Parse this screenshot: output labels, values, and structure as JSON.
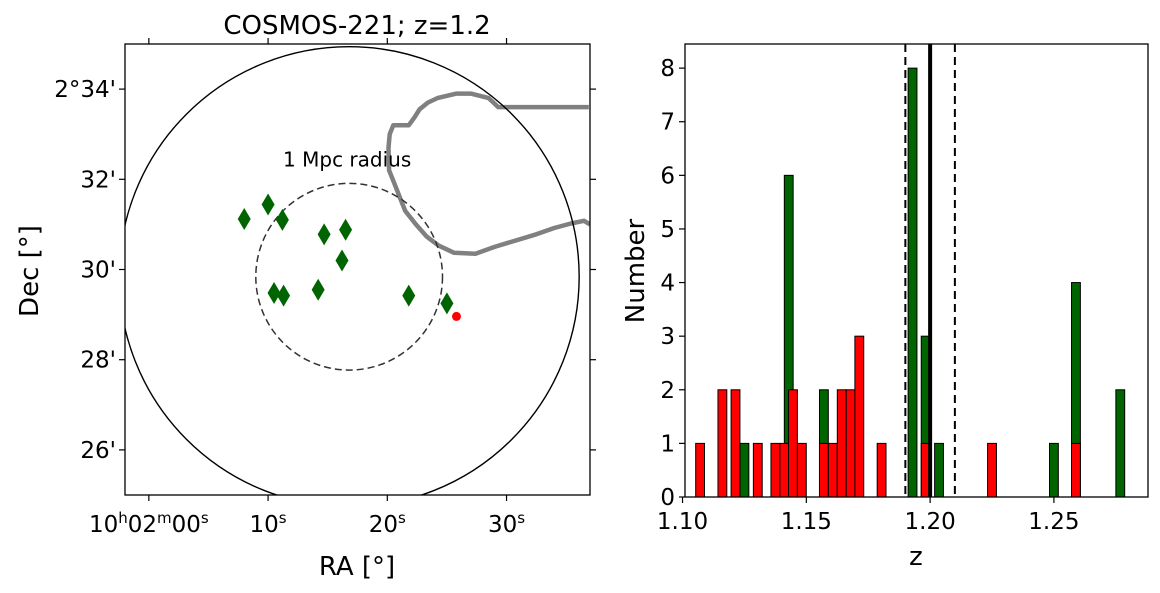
{
  "chart_data": [
    {
      "type": "scatter",
      "title": "COSMOS-221; z=1.2",
      "xlabel": "RA [°]",
      "ylabel": "Dec [°]",
      "xlim_sec": [
        -2,
        37
      ],
      "ylim_arcmin": [
        25.0,
        35.0
      ],
      "x_ticks": [
        {
          "sec": 0,
          "label_main": "10",
          "sup1": "h",
          "mid": "02",
          "sup2": "m",
          "tail": "00",
          "sup3": "s"
        },
        {
          "sec": 10,
          "label_main": "10",
          "sup3": "s"
        },
        {
          "sec": 20,
          "label_main": "20",
          "sup3": "s"
        },
        {
          "sec": 30,
          "label_main": "30",
          "sup3": "s"
        }
      ],
      "y_ticks": [
        {
          "arcmin": 34,
          "label": "2°34'"
        },
        {
          "arcmin": 32,
          "label": "32'"
        },
        {
          "arcmin": 30,
          "label": "30'"
        },
        {
          "arcmin": 28,
          "label": "28'"
        },
        {
          "arcmin": 26,
          "label": "26'"
        }
      ],
      "large_circle": {
        "ra_sec": 16.8,
        "dec_arcmin": 29.84,
        "radius_arcmin": 5.1
      },
      "mpc_circle": {
        "ra_sec": 16.8,
        "dec_arcmin": 29.84,
        "radius_arcmin": 2.07,
        "label": "1 Mpc radius"
      },
      "green_points": [
        {
          "ra": 8.0,
          "dec": 31.12
        },
        {
          "ra": 10.0,
          "dec": 31.44
        },
        {
          "ra": 11.2,
          "dec": 31.1
        },
        {
          "ra": 14.7,
          "dec": 30.78
        },
        {
          "ra": 16.5,
          "dec": 30.88
        },
        {
          "ra": 16.2,
          "dec": 30.2
        },
        {
          "ra": 10.5,
          "dec": 29.48
        },
        {
          "ra": 11.3,
          "dec": 29.42
        },
        {
          "ra": 14.2,
          "dec": 29.55
        },
        {
          "ra": 21.8,
          "dec": 29.42
        },
        {
          "ra": 25.0,
          "dec": 29.25
        }
      ],
      "red_points": [
        {
          "ra": 25.8,
          "dec": 28.96
        }
      ],
      "gray_path": [
        [
          36.9,
          33.6
        ],
        [
          32.0,
          33.6
        ],
        [
          29.3,
          33.6
        ],
        [
          28.5,
          33.8
        ],
        [
          27.0,
          33.9
        ],
        [
          25.8,
          33.9
        ],
        [
          24.2,
          33.8
        ],
        [
          23.4,
          33.7
        ],
        [
          22.7,
          33.55
        ],
        [
          22.3,
          33.38
        ],
        [
          21.8,
          33.2
        ],
        [
          20.5,
          33.2
        ],
        [
          20.2,
          33.0
        ],
        [
          20.1,
          32.7
        ],
        [
          20.15,
          32.2
        ],
        [
          20.6,
          31.9
        ],
        [
          21.5,
          31.3
        ],
        [
          22.4,
          31.0
        ],
        [
          23.3,
          30.73
        ],
        [
          24.3,
          30.53
        ],
        [
          25.6,
          30.37
        ],
        [
          27.4,
          30.35
        ],
        [
          29.0,
          30.5
        ],
        [
          30.6,
          30.63
        ],
        [
          32.5,
          30.78
        ],
        [
          34.0,
          30.92
        ],
        [
          35.4,
          31.02
        ],
        [
          36.5,
          31.08
        ],
        [
          37.0,
          31.0
        ]
      ],
      "colors": {
        "green": "#006400",
        "red": "#ff0000",
        "gray": "#808080",
        "circle": "#000000",
        "dashed": "#333333"
      }
    },
    {
      "type": "bar",
      "title": "",
      "xlabel": "z",
      "ylabel": "Number",
      "xlim": [
        1.101,
        1.288
      ],
      "ylim": [
        0,
        8.45
      ],
      "x_ticks": [
        "1.10",
        "1.15",
        "1.20",
        "1.25"
      ],
      "y_ticks": [
        "0",
        "1",
        "2",
        "3",
        "4",
        "5",
        "6",
        "7",
        "8"
      ],
      "bin_width": 0.00357,
      "series": [
        {
          "color": "#006400",
          "bars": [
            {
              "x": 1.125,
              "value": 1
            },
            {
              "x": 1.1429,
              "value": 6
            },
            {
              "x": 1.1571,
              "value": 2
            },
            {
              "x": 1.1929,
              "value": 8
            },
            {
              "x": 1.1982,
              "value": 3
            },
            {
              "x": 1.2036,
              "value": 1
            },
            {
              "x": 1.25,
              "value": 1
            },
            {
              "x": 1.2589,
              "value": 4
            },
            {
              "x": 1.2768,
              "value": 2
            }
          ]
        },
        {
          "color": "#ff0000",
          "bars": [
            {
              "x": 1.1071,
              "value": 1
            },
            {
              "x": 1.1161,
              "value": 2
            },
            {
              "x": 1.1214,
              "value": 2
            },
            {
              "x": 1.1304,
              "value": 1
            },
            {
              "x": 1.1375,
              "value": 1
            },
            {
              "x": 1.1411,
              "value": 1
            },
            {
              "x": 1.1446,
              "value": 2
            },
            {
              "x": 1.1482,
              "value": 1
            },
            {
              "x": 1.1571,
              "value": 1
            },
            {
              "x": 1.1607,
              "value": 1
            },
            {
              "x": 1.1643,
              "value": 2
            },
            {
              "x": 1.1679,
              "value": 2
            },
            {
              "x": 1.1714,
              "value": 3
            },
            {
              "x": 1.1804,
              "value": 1
            },
            {
              "x": 1.1982,
              "value": 1
            },
            {
              "x": 1.225,
              "value": 1
            },
            {
              "x": 1.2589,
              "value": 1
            }
          ]
        }
      ],
      "vlines": [
        {
          "x": 1.19,
          "style": "dashed"
        },
        {
          "x": 1.2,
          "style": "solid"
        },
        {
          "x": 1.21,
          "style": "dashed"
        }
      ]
    }
  ]
}
